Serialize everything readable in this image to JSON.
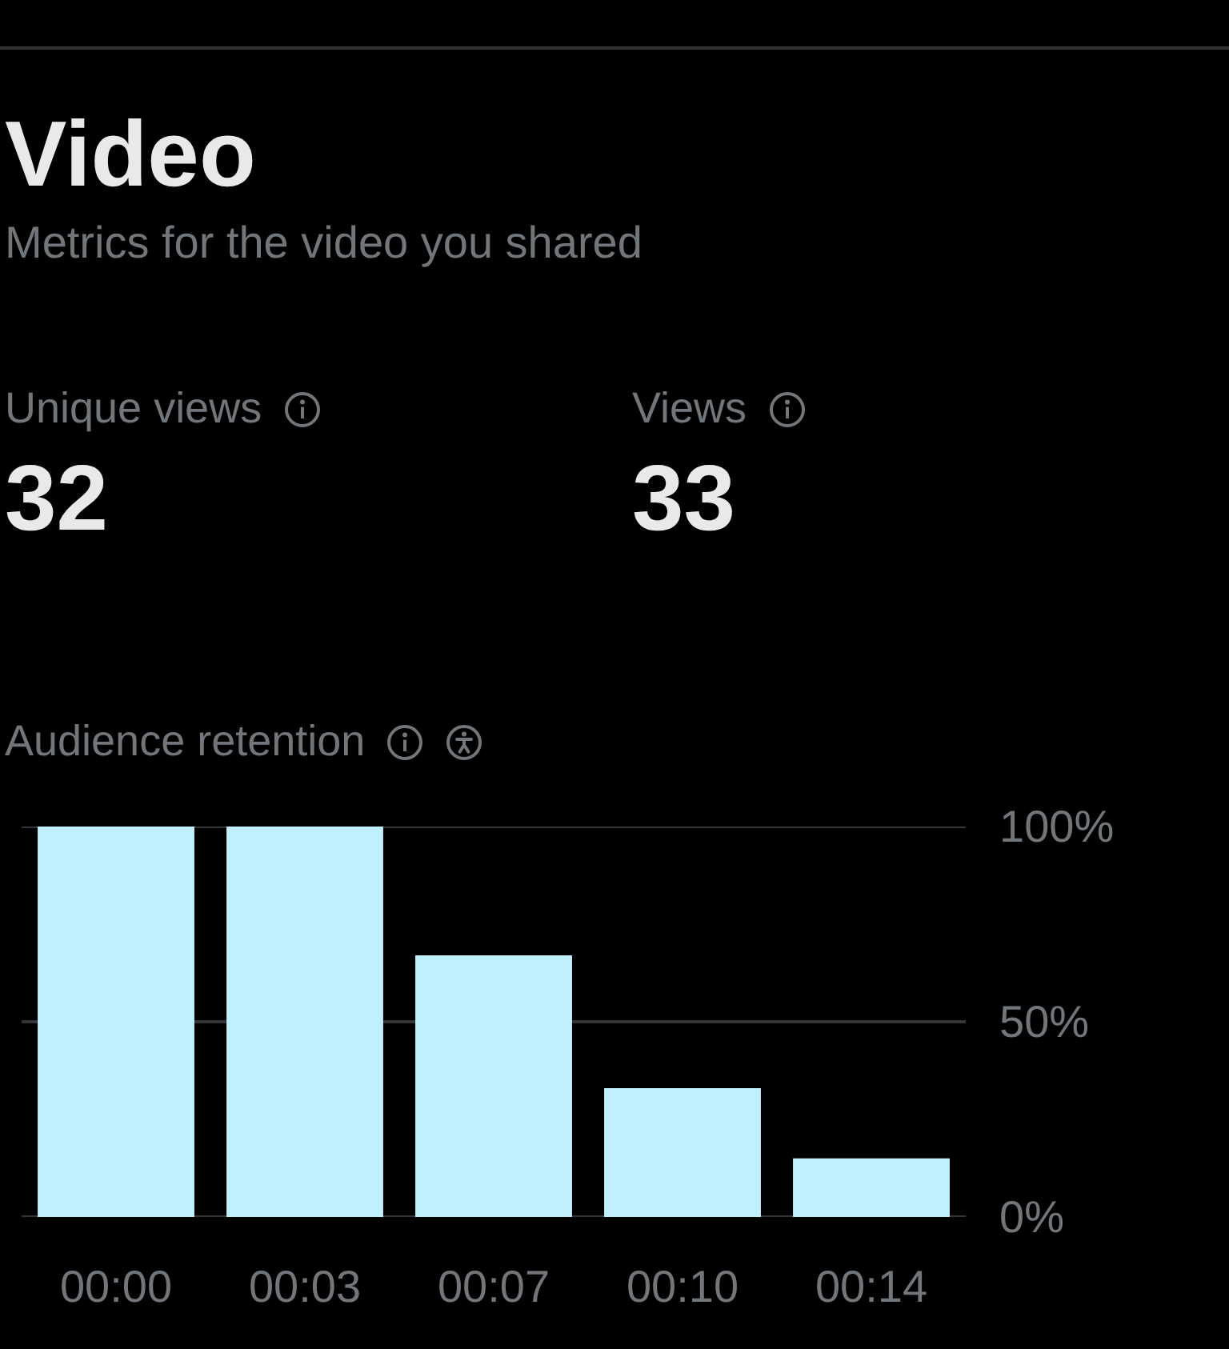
{
  "chart_data": [
    {
      "type": "other",
      "title": "Video",
      "subtitle": "Metrics for the video you shared",
      "annotations": [
        "Unique views",
        "32",
        "Views",
        "33"
      ]
    },
    {
      "type": "bar",
      "title": "Audience retention",
      "categories": [
        "00:00",
        "00:03",
        "00:07",
        "00:10",
        "00:14"
      ],
      "values": [
        100,
        100,
        67,
        33,
        15
      ],
      "color": "#c0effd",
      "ylim": [
        0,
        100
      ],
      "yticks": [
        {
          "value": 0,
          "label": "0%"
        },
        {
          "value": 50,
          "label": "50%"
        },
        {
          "value": 100,
          "label": "100%"
        }
      ],
      "grid": "y"
    }
  ]
}
